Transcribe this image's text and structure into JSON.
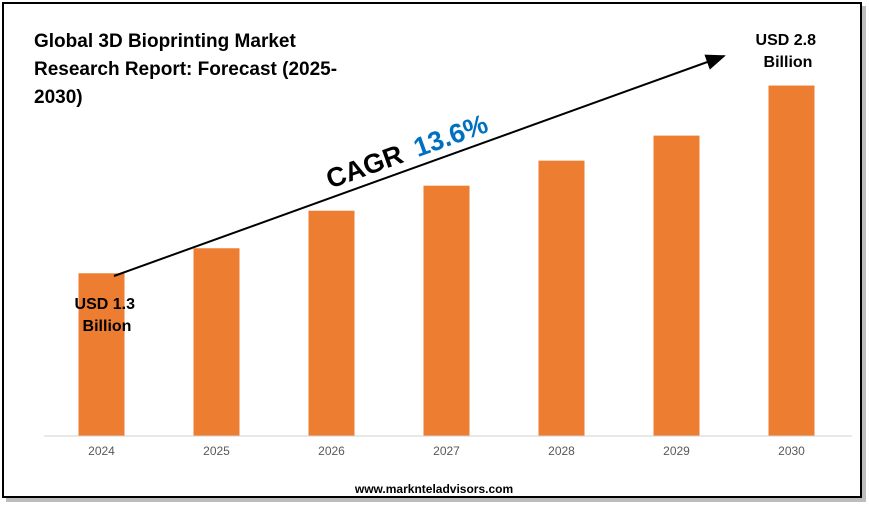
{
  "chart_data": {
    "type": "bar",
    "title": "Global 3D Bioprinting Market Research Report: Forecast (2025-2030)",
    "categories": [
      "2024",
      "2025",
      "2026",
      "2027",
      "2028",
      "2029",
      "2030"
    ],
    "series": [
      {
        "values": [
          1.3,
          1.5,
          1.8,
          2.0,
          2.2,
          2.4,
          2.8
        ]
      }
    ],
    "bar_color": "#ED7D31",
    "ylim": [
      0,
      3.1
    ],
    "grid": false,
    "annotations": {
      "start_label": [
        "USD 1.3",
        "Billion"
      ],
      "end_label": [
        "USD 2.8",
        "Billion"
      ],
      "cagr_prefix": "CAGR",
      "cagr_value": "13.6%",
      "cagr_color": "#0070C0"
    }
  },
  "footer": {
    "website": "www.marknteladvisors.com"
  }
}
